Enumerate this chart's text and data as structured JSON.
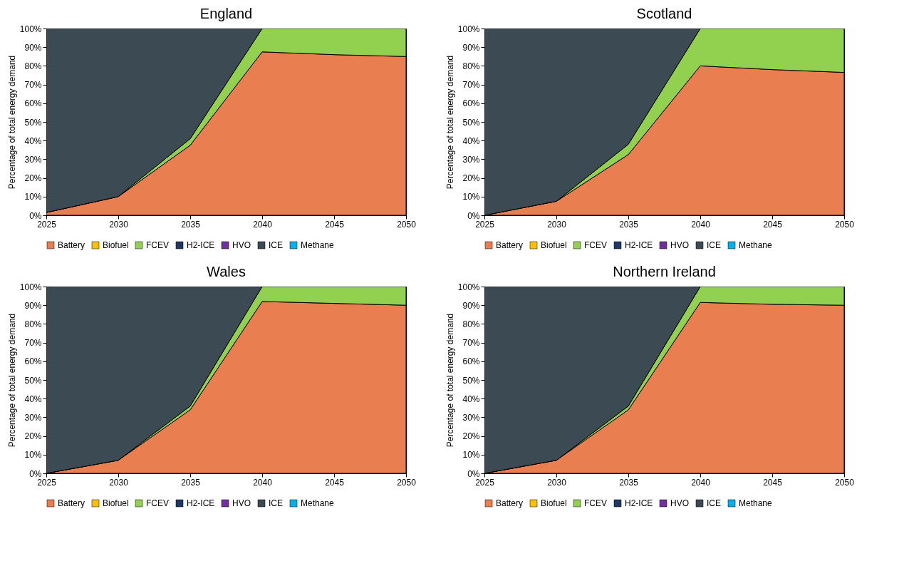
{
  "chart_data": [
    {
      "type": "area",
      "title": "England",
      "ylabel": "Percentage of total energy demand",
      "stacked": true,
      "legend": "bottom",
      "grid": false,
      "x": [
        2025,
        2030,
        2035,
        2040,
        2045,
        2050
      ],
      "xlim": [
        2025,
        2050
      ],
      "xticks": [
        2025,
        2030,
        2035,
        2040,
        2045,
        2050
      ],
      "ylim": [
        0,
        100
      ],
      "yticks": [
        {
          "value": 0,
          "label": "0%"
        },
        {
          "value": 10,
          "label": "10%"
        },
        {
          "value": 20,
          "label": "20%"
        },
        {
          "value": 30,
          "label": "30%"
        },
        {
          "value": 40,
          "label": "40%"
        },
        {
          "value": 50,
          "label": "50%"
        },
        {
          "value": 60,
          "label": "60%"
        },
        {
          "value": 70,
          "label": "70%"
        },
        {
          "value": 80,
          "label": "80%"
        },
        {
          "value": 90,
          "label": "90%"
        },
        {
          "value": 100,
          "label": "100%"
        }
      ],
      "series": [
        {
          "name": "Battery",
          "color": "#e97e50",
          "values": [
            1.5,
            10,
            37.5,
            87.5,
            86,
            85
          ]
        },
        {
          "name": "Biofuel",
          "color": "#ffc000",
          "values": [
            null,
            null,
            null,
            null,
            null,
            null
          ]
        },
        {
          "name": "FCEV",
          "color": "#92d050",
          "values": [
            0,
            0,
            3.5,
            12.5,
            14,
            15
          ]
        },
        {
          "name": "H2-ICE",
          "color": "#1f3864",
          "values": [
            null,
            null,
            null,
            null,
            null,
            null
          ]
        },
        {
          "name": "HVO",
          "color": "#7030a0",
          "values": [
            null,
            null,
            null,
            null,
            null,
            null
          ]
        },
        {
          "name": "ICE",
          "color": "#3c4a54",
          "values": [
            98.5,
            90,
            59,
            0,
            null,
            null
          ]
        },
        {
          "name": "Methane",
          "color": "#00b0f0",
          "values": [
            null,
            null,
            null,
            null,
            null,
            null
          ]
        }
      ]
    },
    {
      "type": "area",
      "title": "Scotland",
      "ylabel": "Percentage of total energy demand",
      "stacked": true,
      "legend": "bottom",
      "grid": false,
      "x": [
        2025,
        2030,
        2035,
        2040,
        2045,
        2050
      ],
      "xlim": [
        2025,
        2050
      ],
      "xticks": [
        2025,
        2030,
        2035,
        2040,
        2045,
        2050
      ],
      "ylim": [
        0,
        100
      ],
      "yticks": [
        {
          "value": 0,
          "label": "0%"
        },
        {
          "value": 10,
          "label": "10%"
        },
        {
          "value": 20,
          "label": "20%"
        },
        {
          "value": 30,
          "label": "30%"
        },
        {
          "value": 40,
          "label": "40%"
        },
        {
          "value": 50,
          "label": "50%"
        },
        {
          "value": 60,
          "label": "60%"
        },
        {
          "value": 70,
          "label": "70%"
        },
        {
          "value": 80,
          "label": "80%"
        },
        {
          "value": 90,
          "label": "90%"
        },
        {
          "value": 100,
          "label": "100%"
        }
      ],
      "series": [
        {
          "name": "Battery",
          "color": "#e97e50",
          "values": [
            0,
            7.5,
            32.5,
            80,
            78,
            76.5
          ]
        },
        {
          "name": "Biofuel",
          "color": "#ffc000",
          "values": [
            null,
            null,
            null,
            null,
            null,
            null
          ]
        },
        {
          "name": "FCEV",
          "color": "#92d050",
          "values": [
            0,
            0,
            5.5,
            20,
            22,
            23.5
          ]
        },
        {
          "name": "H2-ICE",
          "color": "#1f3864",
          "values": [
            null,
            null,
            null,
            null,
            null,
            null
          ]
        },
        {
          "name": "HVO",
          "color": "#7030a0",
          "values": [
            null,
            null,
            null,
            null,
            null,
            null
          ]
        },
        {
          "name": "ICE",
          "color": "#3c4a54",
          "values": [
            100,
            92.5,
            62,
            0,
            null,
            null
          ]
        },
        {
          "name": "Methane",
          "color": "#00b0f0",
          "values": [
            null,
            null,
            null,
            null,
            null,
            null
          ]
        }
      ]
    },
    {
      "type": "area",
      "title": "Wales",
      "ylabel": "Percentage of total energy demand",
      "stacked": true,
      "legend": "bottom",
      "grid": false,
      "x": [
        2025,
        2030,
        2035,
        2040,
        2045,
        2050
      ],
      "xlim": [
        2025,
        2050
      ],
      "xticks": [
        2025,
        2030,
        2035,
        2040,
        2045,
        2050
      ],
      "ylim": [
        0,
        100
      ],
      "yticks": [
        {
          "value": 0,
          "label": "0%"
        },
        {
          "value": 10,
          "label": "10%"
        },
        {
          "value": 20,
          "label": "20%"
        },
        {
          "value": 30,
          "label": "30%"
        },
        {
          "value": 40,
          "label": "40%"
        },
        {
          "value": 50,
          "label": "50%"
        },
        {
          "value": 60,
          "label": "60%"
        },
        {
          "value": 70,
          "label": "70%"
        },
        {
          "value": 80,
          "label": "80%"
        },
        {
          "value": 90,
          "label": "90%"
        },
        {
          "value": 100,
          "label": "100%"
        }
      ],
      "series": [
        {
          "name": "Battery",
          "color": "#e97e50",
          "values": [
            0,
            7,
            34,
            92,
            91,
            90
          ]
        },
        {
          "name": "Biofuel",
          "color": "#ffc000",
          "values": [
            null,
            null,
            null,
            null,
            null,
            null
          ]
        },
        {
          "name": "FCEV",
          "color": "#92d050",
          "values": [
            0,
            0,
            2,
            8,
            9,
            10
          ]
        },
        {
          "name": "H2-ICE",
          "color": "#1f3864",
          "values": [
            null,
            null,
            null,
            null,
            null,
            null
          ]
        },
        {
          "name": "HVO",
          "color": "#7030a0",
          "values": [
            null,
            null,
            null,
            null,
            null,
            null
          ]
        },
        {
          "name": "ICE",
          "color": "#3c4a54",
          "values": [
            100,
            93,
            64,
            0,
            null,
            null
          ]
        },
        {
          "name": "Methane",
          "color": "#00b0f0",
          "values": [
            null,
            null,
            null,
            null,
            null,
            null
          ]
        }
      ]
    },
    {
      "type": "area",
      "title": "Northern Ireland",
      "ylabel": "Percentage of total energy demand",
      "stacked": true,
      "legend": "bottom",
      "grid": false,
      "x": [
        2025,
        2030,
        2035,
        2040,
        2045,
        2050
      ],
      "xlim": [
        2025,
        2050
      ],
      "xticks": [
        2025,
        2030,
        2035,
        2040,
        2045,
        2050
      ],
      "ylim": [
        0,
        100
      ],
      "yticks": [
        {
          "value": 0,
          "label": "0%"
        },
        {
          "value": 10,
          "label": "10%"
        },
        {
          "value": 20,
          "label": "20%"
        },
        {
          "value": 30,
          "label": "30%"
        },
        {
          "value": 40,
          "label": "40%"
        },
        {
          "value": 50,
          "label": "50%"
        },
        {
          "value": 60,
          "label": "60%"
        },
        {
          "value": 70,
          "label": "70%"
        },
        {
          "value": 80,
          "label": "80%"
        },
        {
          "value": 90,
          "label": "90%"
        },
        {
          "value": 100,
          "label": "100%"
        }
      ],
      "series": [
        {
          "name": "Battery",
          "color": "#e97e50",
          "values": [
            0,
            7,
            34,
            91.5,
            90.5,
            90
          ]
        },
        {
          "name": "Biofuel",
          "color": "#ffc000",
          "values": [
            null,
            null,
            null,
            null,
            null,
            null
          ]
        },
        {
          "name": "FCEV",
          "color": "#92d050",
          "values": [
            0,
            0,
            2,
            8.5,
            9.5,
            10
          ]
        },
        {
          "name": "H2-ICE",
          "color": "#1f3864",
          "values": [
            null,
            null,
            null,
            null,
            null,
            null
          ]
        },
        {
          "name": "HVO",
          "color": "#7030a0",
          "values": [
            null,
            null,
            null,
            null,
            null,
            null
          ]
        },
        {
          "name": "ICE",
          "color": "#3c4a54",
          "values": [
            100,
            93,
            64,
            0,
            null,
            null
          ]
        },
        {
          "name": "Methane",
          "color": "#00b0f0",
          "values": [
            null,
            null,
            null,
            null,
            null,
            null
          ]
        }
      ]
    }
  ]
}
